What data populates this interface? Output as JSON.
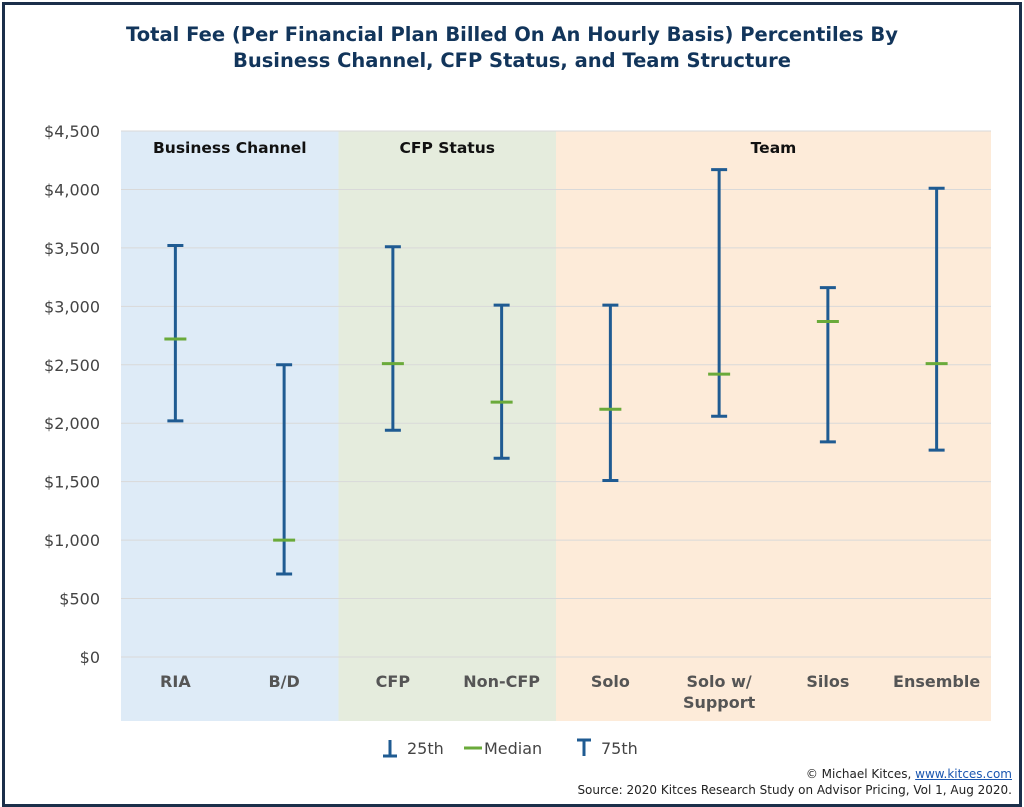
{
  "title_line1": "Total Fee (Per Financial Plan Billed On An Hourly Basis) Percentiles By",
  "title_line2": "Business Channel, CFP Status, and Team Structure",
  "chart_data": {
    "type": "error-bar",
    "ylim": [
      0,
      4500
    ],
    "yticks": [
      0,
      500,
      1000,
      1500,
      2000,
      2500,
      3000,
      3500,
      4000,
      4500
    ],
    "ytick_labels": [
      "$0",
      "$500",
      "$1,000",
      "$1,500",
      "$2,000",
      "$2,500",
      "$3,000",
      "$3,500",
      "$4,000",
      "$4,500"
    ],
    "grid": true,
    "groups": [
      {
        "label": "Business Channel",
        "color": "#deebf7",
        "categories": [
          "RIA",
          "B/D"
        ]
      },
      {
        "label": "CFP Status",
        "color": "#e5ecdd",
        "categories": [
          "CFP",
          "Non-CFP"
        ]
      },
      {
        "label": "Team",
        "color": "#fdebd9",
        "categories": [
          "Solo",
          "Solo w/ Support",
          "Silos",
          "Ensemble"
        ]
      }
    ],
    "categories": [
      {
        "name": "RIA",
        "lines": [
          "RIA"
        ],
        "p25": 2020,
        "median": 2720,
        "p75": 3520
      },
      {
        "name": "B/D",
        "lines": [
          "B/D"
        ],
        "p25": 710,
        "median": 1000,
        "p75": 2500
      },
      {
        "name": "CFP",
        "lines": [
          "CFP"
        ],
        "p25": 1940,
        "median": 2510,
        "p75": 3510
      },
      {
        "name": "Non-CFP",
        "lines": [
          "Non-CFP"
        ],
        "p25": 1700,
        "median": 2180,
        "p75": 3010
      },
      {
        "name": "Solo",
        "lines": [
          "Solo"
        ],
        "p25": 1510,
        "median": 2120,
        "p75": 3010
      },
      {
        "name": "Solo w/ Support",
        "lines": [
          "Solo w/",
          "Support"
        ],
        "p25": 2060,
        "median": 2420,
        "p75": 4170
      },
      {
        "name": "Silos",
        "lines": [
          "Silos"
        ],
        "p25": 1840,
        "median": 2870,
        "p75": 3160
      },
      {
        "name": "Ensemble",
        "lines": [
          "Ensemble"
        ],
        "p25": 1770,
        "median": 2510,
        "p75": 4010
      }
    ],
    "legend": [
      {
        "label": "25th",
        "marker": "p25"
      },
      {
        "label": "Median",
        "marker": "median"
      },
      {
        "label": "75th",
        "marker": "p75"
      }
    ],
    "legend_position": "bottom",
    "colors": {
      "range": "#1f5b92",
      "median": "#6aaa3a",
      "grid": "#d9d9d9",
      "axis_text": "#444444",
      "category_text": "#555555"
    }
  },
  "footer": {
    "copyright": "© Michael Kitces, ",
    "link": "www.kitces.com",
    "source": "Source: 2020 Kitces Research Study on Advisor Pricing, Vol 1, Aug 2020."
  }
}
